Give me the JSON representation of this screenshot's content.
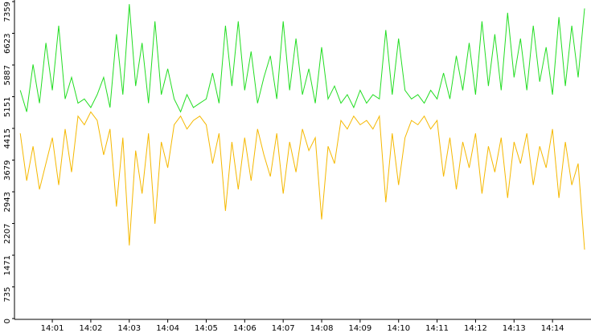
{
  "chart_data": {
    "type": "line",
    "x": [
      "14:00:10",
      "14:00:20",
      "14:00:30",
      "14:00:40",
      "14:00:50",
      "14:01:00",
      "14:01:10",
      "14:01:20",
      "14:01:30",
      "14:01:40",
      "14:01:50",
      "14:02:00",
      "14:02:10",
      "14:02:20",
      "14:02:30",
      "14:02:40",
      "14:02:50",
      "14:03:00",
      "14:03:10",
      "14:03:20",
      "14:03:30",
      "14:03:40",
      "14:03:50",
      "14:04:00",
      "14:04:10",
      "14:04:20",
      "14:04:30",
      "14:04:40",
      "14:04:50",
      "14:05:00",
      "14:05:10",
      "14:05:20",
      "14:05:30",
      "14:05:40",
      "14:05:50",
      "14:06:00",
      "14:06:10",
      "14:06:20",
      "14:06:30",
      "14:06:40",
      "14:06:50",
      "14:07:00",
      "14:07:10",
      "14:07:20",
      "14:07:30",
      "14:07:40",
      "14:07:50",
      "14:08:00",
      "14:08:10",
      "14:08:20",
      "14:08:30",
      "14:08:40",
      "14:08:50",
      "14:09:00",
      "14:09:10",
      "14:09:20",
      "14:09:30",
      "14:09:40",
      "14:09:50",
      "14:10:00",
      "14:10:10",
      "14:10:20",
      "14:10:30",
      "14:10:40",
      "14:10:50",
      "14:11:00",
      "14:11:10",
      "14:11:20",
      "14:11:30",
      "14:11:40",
      "14:11:50",
      "14:12:00",
      "14:12:10",
      "14:12:20",
      "14:12:30",
      "14:12:40",
      "14:12:50",
      "14:13:00",
      "14:13:10",
      "14:13:20",
      "14:13:30",
      "14:13:40",
      "14:13:50",
      "14:14:00",
      "14:14:10",
      "14:14:20",
      "14:14:30",
      "14:14:40",
      "14:14:50"
    ],
    "xlim": [
      "14:00:01",
      "14:15:00"
    ],
    "xticks": [
      "14:01",
      "14:02",
      "14:03",
      "14:04",
      "14:05",
      "14:06",
      "14:07",
      "14:08",
      "14:09",
      "14:10",
      "14:11",
      "14:12",
      "14:13",
      "14:14"
    ],
    "ylim": [
      0,
      7359
    ],
    "yticks": [
      0,
      735,
      1471,
      2207,
      2943,
      3679,
      4415,
      5151,
      5887,
      6623,
      7359
    ],
    "series": [
      {
        "color": "#22dd22",
        "values": [
          5300,
          4800,
          5900,
          5000,
          6400,
          5300,
          6800,
          5100,
          5600,
          5000,
          5100,
          4900,
          5200,
          5600,
          4900,
          6600,
          5200,
          7300,
          5400,
          6400,
          5000,
          6900,
          5200,
          5800,
          5100,
          4800,
          5200,
          4900,
          5000,
          5100,
          5700,
          5000,
          6800,
          5400,
          6900,
          5300,
          6200,
          5000,
          5600,
          6100,
          5100,
          6900,
          5300,
          6500,
          5200,
          5800,
          5000,
          6300,
          5100,
          5400,
          5000,
          5200,
          4900,
          5300,
          5000,
          5200,
          5100,
          6700,
          5200,
          6500,
          5300,
          5100,
          5200,
          5000,
          5300,
          5100,
          5700,
          5100,
          6100,
          5300,
          6400,
          5200,
          6900,
          5400,
          6600,
          5300,
          7100,
          5600,
          6500,
          5300,
          6800,
          5500,
          6300,
          5200,
          7000,
          5400,
          6800,
          5600,
          7200
        ]
      },
      {
        "color": "#f5b800",
        "values": [
          4300,
          3200,
          4000,
          3000,
          3600,
          4200,
          3100,
          4400,
          3400,
          4700,
          4500,
          4800,
          4600,
          3800,
          4400,
          2600,
          4200,
          1700,
          3900,
          2900,
          4300,
          2200,
          4100,
          3500,
          4500,
          4700,
          4400,
          4600,
          4700,
          4500,
          3600,
          4300,
          2500,
          4100,
          3000,
          4200,
          3200,
          4400,
          3800,
          3300,
          4300,
          2900,
          4100,
          3400,
          4400,
          3900,
          4200,
          2300,
          4000,
          3600,
          4600,
          4400,
          4700,
          4500,
          4600,
          4400,
          4700,
          2700,
          4300,
          3100,
          4200,
          4600,
          4500,
          4700,
          4400,
          4600,
          3300,
          4200,
          3000,
          4100,
          3500,
          4300,
          2900,
          4000,
          3400,
          4200,
          2800,
          4100,
          3600,
          4300,
          3100,
          4000,
          3500,
          4400,
          2800,
          4100,
          3100,
          3600,
          1600
        ]
      }
    ]
  }
}
